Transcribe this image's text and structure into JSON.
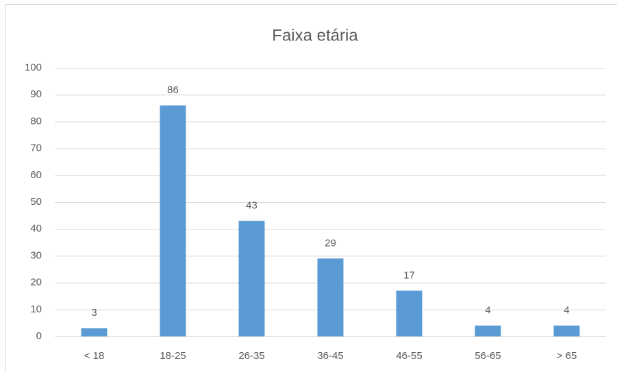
{
  "chart_data": {
    "type": "bar",
    "title": "Faixa etária",
    "categories": [
      "< 18",
      "18-25",
      "26-35",
      "36-45",
      "46-55",
      "56-65",
      "> 65"
    ],
    "values": [
      3,
      86,
      43,
      29,
      17,
      4,
      4
    ],
    "color": "#5b9bd5",
    "ylim": [
      0,
      100
    ],
    "yticks": [
      0,
      10,
      20,
      30,
      40,
      50,
      60,
      70,
      80,
      90,
      100
    ],
    "grid": true,
    "data_labels": true
  }
}
